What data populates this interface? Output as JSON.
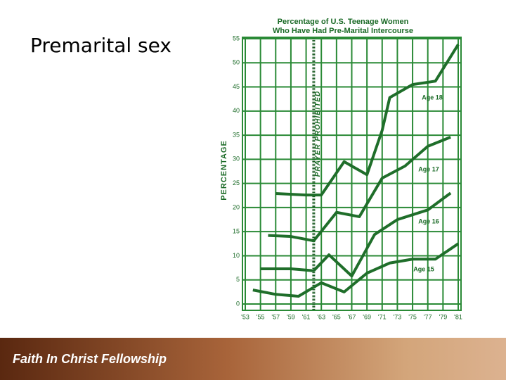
{
  "slide": {
    "title": "Premarital sex",
    "footer": "Faith In Christ Fellowship"
  },
  "chart_data": {
    "type": "line",
    "title": [
      "Percentage of U.S. Teenage Women",
      "Who Have Had Pre-Marital Intercourse"
    ],
    "ylabel": "PERCENTAGE",
    "annotation": {
      "text": "PRAYER PROHIBITED",
      "x": 1962
    },
    "xlim": [
      1953,
      1981
    ],
    "xticks": [
      {
        "value": 1953,
        "label": "'53"
      },
      {
        "value": 1955,
        "label": "'55"
      },
      {
        "value": 1957,
        "label": "'57"
      },
      {
        "value": 1959,
        "label": "'59"
      },
      {
        "value": 1961,
        "label": "'61"
      },
      {
        "value": 1963,
        "label": "'63"
      },
      {
        "value": 1965,
        "label": "'65"
      },
      {
        "value": 1967,
        "label": "'67"
      },
      {
        "value": 1969,
        "label": "'69"
      },
      {
        "value": 1971,
        "label": "'71"
      },
      {
        "value": 1973,
        "label": "'73"
      },
      {
        "value": 1975,
        "label": "'75"
      },
      {
        "value": 1977,
        "label": "'77"
      },
      {
        "value": 1979,
        "label": "'79"
      },
      {
        "value": 1981,
        "label": "'81"
      }
    ],
    "ylim": [
      0,
      55
    ],
    "yticks": [
      0,
      5,
      10,
      15,
      20,
      25,
      30,
      35,
      40,
      45,
      50,
      55
    ],
    "grid": true,
    "series": [
      {
        "name": "Age 18",
        "color": "#1f6e2a",
        "x": [
          1957,
          1961,
          1963,
          1966,
          1969,
          1971,
          1972,
          1975,
          1978,
          1981
        ],
        "values": [
          22.9,
          22.6,
          22.6,
          29.5,
          26.8,
          36,
          42.8,
          45.5,
          46.2,
          53.8
        ]
      },
      {
        "name": "Age 17",
        "color": "#1f6e2a",
        "x": [
          1956,
          1959,
          1962,
          1965,
          1968,
          1971,
          1974,
          1977,
          1980
        ],
        "values": [
          14.2,
          14,
          13.1,
          19,
          18.1,
          26.1,
          28.6,
          32.7,
          34.6
        ]
      },
      {
        "name": "Age 16",
        "color": "#1f6e2a",
        "x": [
          1955,
          1959,
          1962,
          1964,
          1967,
          1970,
          1973,
          1977,
          1980
        ],
        "values": [
          7.3,
          7.3,
          6.9,
          10.2,
          5.8,
          14.4,
          17.5,
          19.5,
          23
        ]
      },
      {
        "name": "Age 15",
        "color": "#1f6e2a",
        "x": [
          1954,
          1957,
          1960,
          1963,
          1966,
          1969,
          1972,
          1975,
          1978,
          1981
        ],
        "values": [
          2.9,
          2,
          1.6,
          4.4,
          2.5,
          6.4,
          8.5,
          9.3,
          9.3,
          12.5
        ]
      }
    ]
  }
}
